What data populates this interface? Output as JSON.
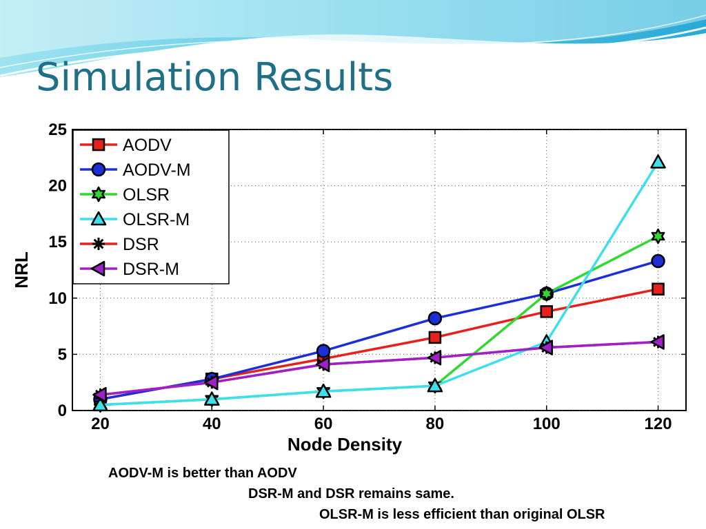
{
  "slide": {
    "title": "Simulation Results",
    "notes": [
      "AODV-M is better than AODV",
      "DSR-M and DSR remains same.",
      "OLSR-M is less efficient than original OLSR"
    ]
  },
  "chart_data": {
    "type": "line",
    "title": "",
    "xlabel": "Node Density",
    "ylabel": "NRL",
    "x": [
      20,
      40,
      60,
      80,
      100,
      120
    ],
    "xlim": [
      15,
      125
    ],
    "ylim": [
      0,
      25
    ],
    "yticks": [
      0,
      5,
      10,
      15,
      20,
      25
    ],
    "grid": true,
    "legend_position": "top-left",
    "series": [
      {
        "name": "AODV",
        "color": "#e8201c",
        "marker": "square",
        "values": [
          1.0,
          2.8,
          4.6,
          6.5,
          8.8,
          10.8
        ]
      },
      {
        "name": "AODV-M",
        "color": "#1c2ed8",
        "marker": "circle",
        "values": [
          1.0,
          2.8,
          5.3,
          8.2,
          10.4,
          13.3
        ]
      },
      {
        "name": "OLSR",
        "color": "#2fd92f",
        "marker": "hexagram",
        "values": [
          0.5,
          1.0,
          1.7,
          2.2,
          10.4,
          15.5
        ]
      },
      {
        "name": "OLSR-M",
        "color": "#3de0ea",
        "marker": "triangle",
        "values": [
          0.5,
          1.0,
          1.7,
          2.2,
          6.1,
          22.1
        ]
      },
      {
        "name": "DSR",
        "color": "#e8201c",
        "marker": "asterisk",
        "values": [
          1.4,
          2.5,
          4.1,
          4.7,
          5.6,
          6.1
        ]
      },
      {
        "name": "DSR-M",
        "color": "#a020c8",
        "marker": "triangle-left",
        "values": [
          1.4,
          2.5,
          4.1,
          4.7,
          5.6,
          6.1
        ]
      }
    ]
  }
}
